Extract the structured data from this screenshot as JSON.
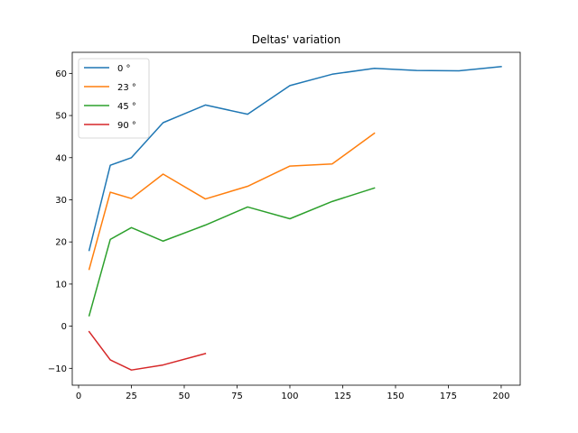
{
  "chart_data": {
    "type": "line",
    "title": "Deltas' variation",
    "xlabel": "",
    "ylabel": "",
    "xlim": [
      -3,
      209
    ],
    "ylim": [
      -14,
      65
    ],
    "xticks": [
      0,
      25,
      50,
      75,
      100,
      125,
      150,
      175,
      200
    ],
    "yticks": [
      -10,
      0,
      10,
      20,
      30,
      40,
      50,
      60
    ],
    "grid": false,
    "legend_position": "upper-left",
    "series": [
      {
        "name": "0 °",
        "color": "#1f77b4",
        "x": [
          5,
          15,
          25,
          40,
          60,
          80,
          100,
          120,
          140,
          160,
          180,
          200
        ],
        "y": [
          18,
          38.2,
          40,
          48.3,
          52.5,
          50.3,
          57.1,
          59.8,
          61.2,
          60.7,
          60.6,
          61.6
        ]
      },
      {
        "name": "23 °",
        "color": "#ff7f0e",
        "x": [
          5,
          15,
          25,
          40,
          60,
          80,
          100,
          120,
          140
        ],
        "y": [
          13.5,
          31.8,
          30.3,
          36.1,
          30.2,
          33.2,
          38,
          38.5,
          45.8
        ]
      },
      {
        "name": "45 °",
        "color": "#2ca02c",
        "x": [
          5,
          15,
          25,
          40,
          60,
          80,
          100,
          120,
          140
        ],
        "y": [
          2.5,
          20.6,
          23.4,
          20.2,
          24,
          28.3,
          25.5,
          29.6,
          32.8
        ]
      },
      {
        "name": "90 °",
        "color": "#d62728",
        "x": [
          5,
          15,
          25,
          40,
          60
        ],
        "y": [
          -1.3,
          -8,
          -10.4,
          -9.2,
          -6.5
        ]
      }
    ]
  }
}
